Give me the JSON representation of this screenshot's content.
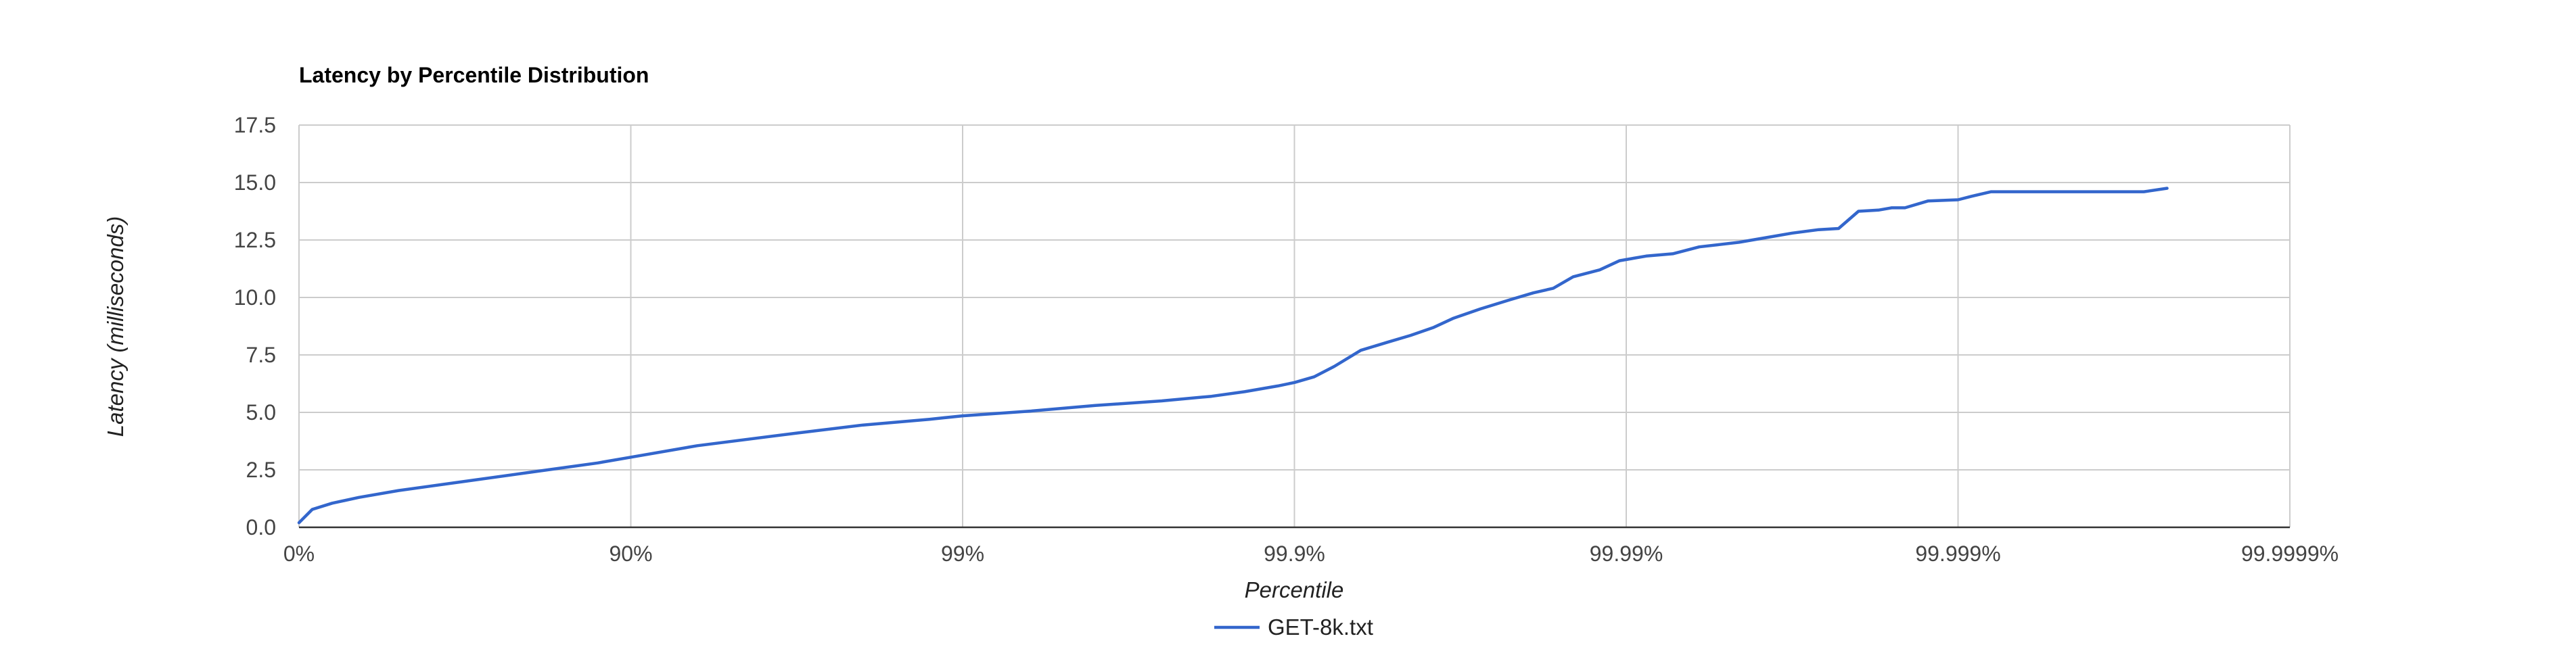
{
  "chart_data": {
    "type": "line",
    "title": "Latency by Percentile Distribution",
    "xlabel": "Percentile",
    "ylabel": "Latency (milliseconds)",
    "x_scale": "inverse-log-percentile",
    "x_ticks": [
      "0%",
      "90%",
      "99%",
      "99.9%",
      "99.99%",
      "99.999%",
      "99.9999%"
    ],
    "xlim": [
      0,
      6
    ],
    "y_ticks": [
      "0.0",
      "2.5",
      "5.0",
      "7.5",
      "10.0",
      "12.5",
      "15.0",
      "17.5"
    ],
    "ylim": [
      0,
      17.5
    ],
    "grid": true,
    "legend_position": "bottom",
    "series": [
      {
        "name": "GET-8k.txt",
        "color": "#3366cc",
        "x": [
          0.0,
          0.04,
          0.1,
          0.18,
          0.3,
          0.5,
          0.7,
          0.9,
          1.0,
          1.2,
          1.5,
          1.7,
          1.9,
          2.0,
          2.2,
          2.4,
          2.6,
          2.75,
          2.85,
          2.95,
          3.0,
          3.06,
          3.12,
          3.2,
          3.28,
          3.35,
          3.42,
          3.48,
          3.56,
          3.65,
          3.72,
          3.78,
          3.84,
          3.92,
          3.98,
          4.06,
          4.14,
          4.22,
          4.28,
          4.34,
          4.42,
          4.5,
          4.58,
          4.64,
          4.7,
          4.76,
          4.8,
          4.84,
          4.91,
          5.0,
          5.04,
          5.1,
          5.16,
          5.27,
          5.33,
          5.42,
          5.5,
          5.56,
          5.63
        ],
        "y": [
          0.2,
          0.78,
          1.05,
          1.3,
          1.6,
          2.0,
          2.4,
          2.8,
          3.05,
          3.55,
          4.1,
          4.45,
          4.7,
          4.85,
          5.05,
          5.3,
          5.5,
          5.7,
          5.9,
          6.15,
          6.3,
          6.55,
          7.0,
          7.7,
          8.05,
          8.35,
          8.7,
          9.1,
          9.5,
          9.9,
          10.2,
          10.4,
          10.9,
          11.2,
          11.6,
          11.8,
          11.9,
          12.2,
          12.3,
          12.4,
          12.6,
          12.8,
          12.95,
          13.0,
          13.75,
          13.8,
          13.9,
          13.9,
          14.2,
          14.25,
          14.4,
          14.6,
          14.6,
          14.6,
          14.6,
          14.6,
          14.6,
          14.6,
          14.75
        ]
      }
    ]
  }
}
